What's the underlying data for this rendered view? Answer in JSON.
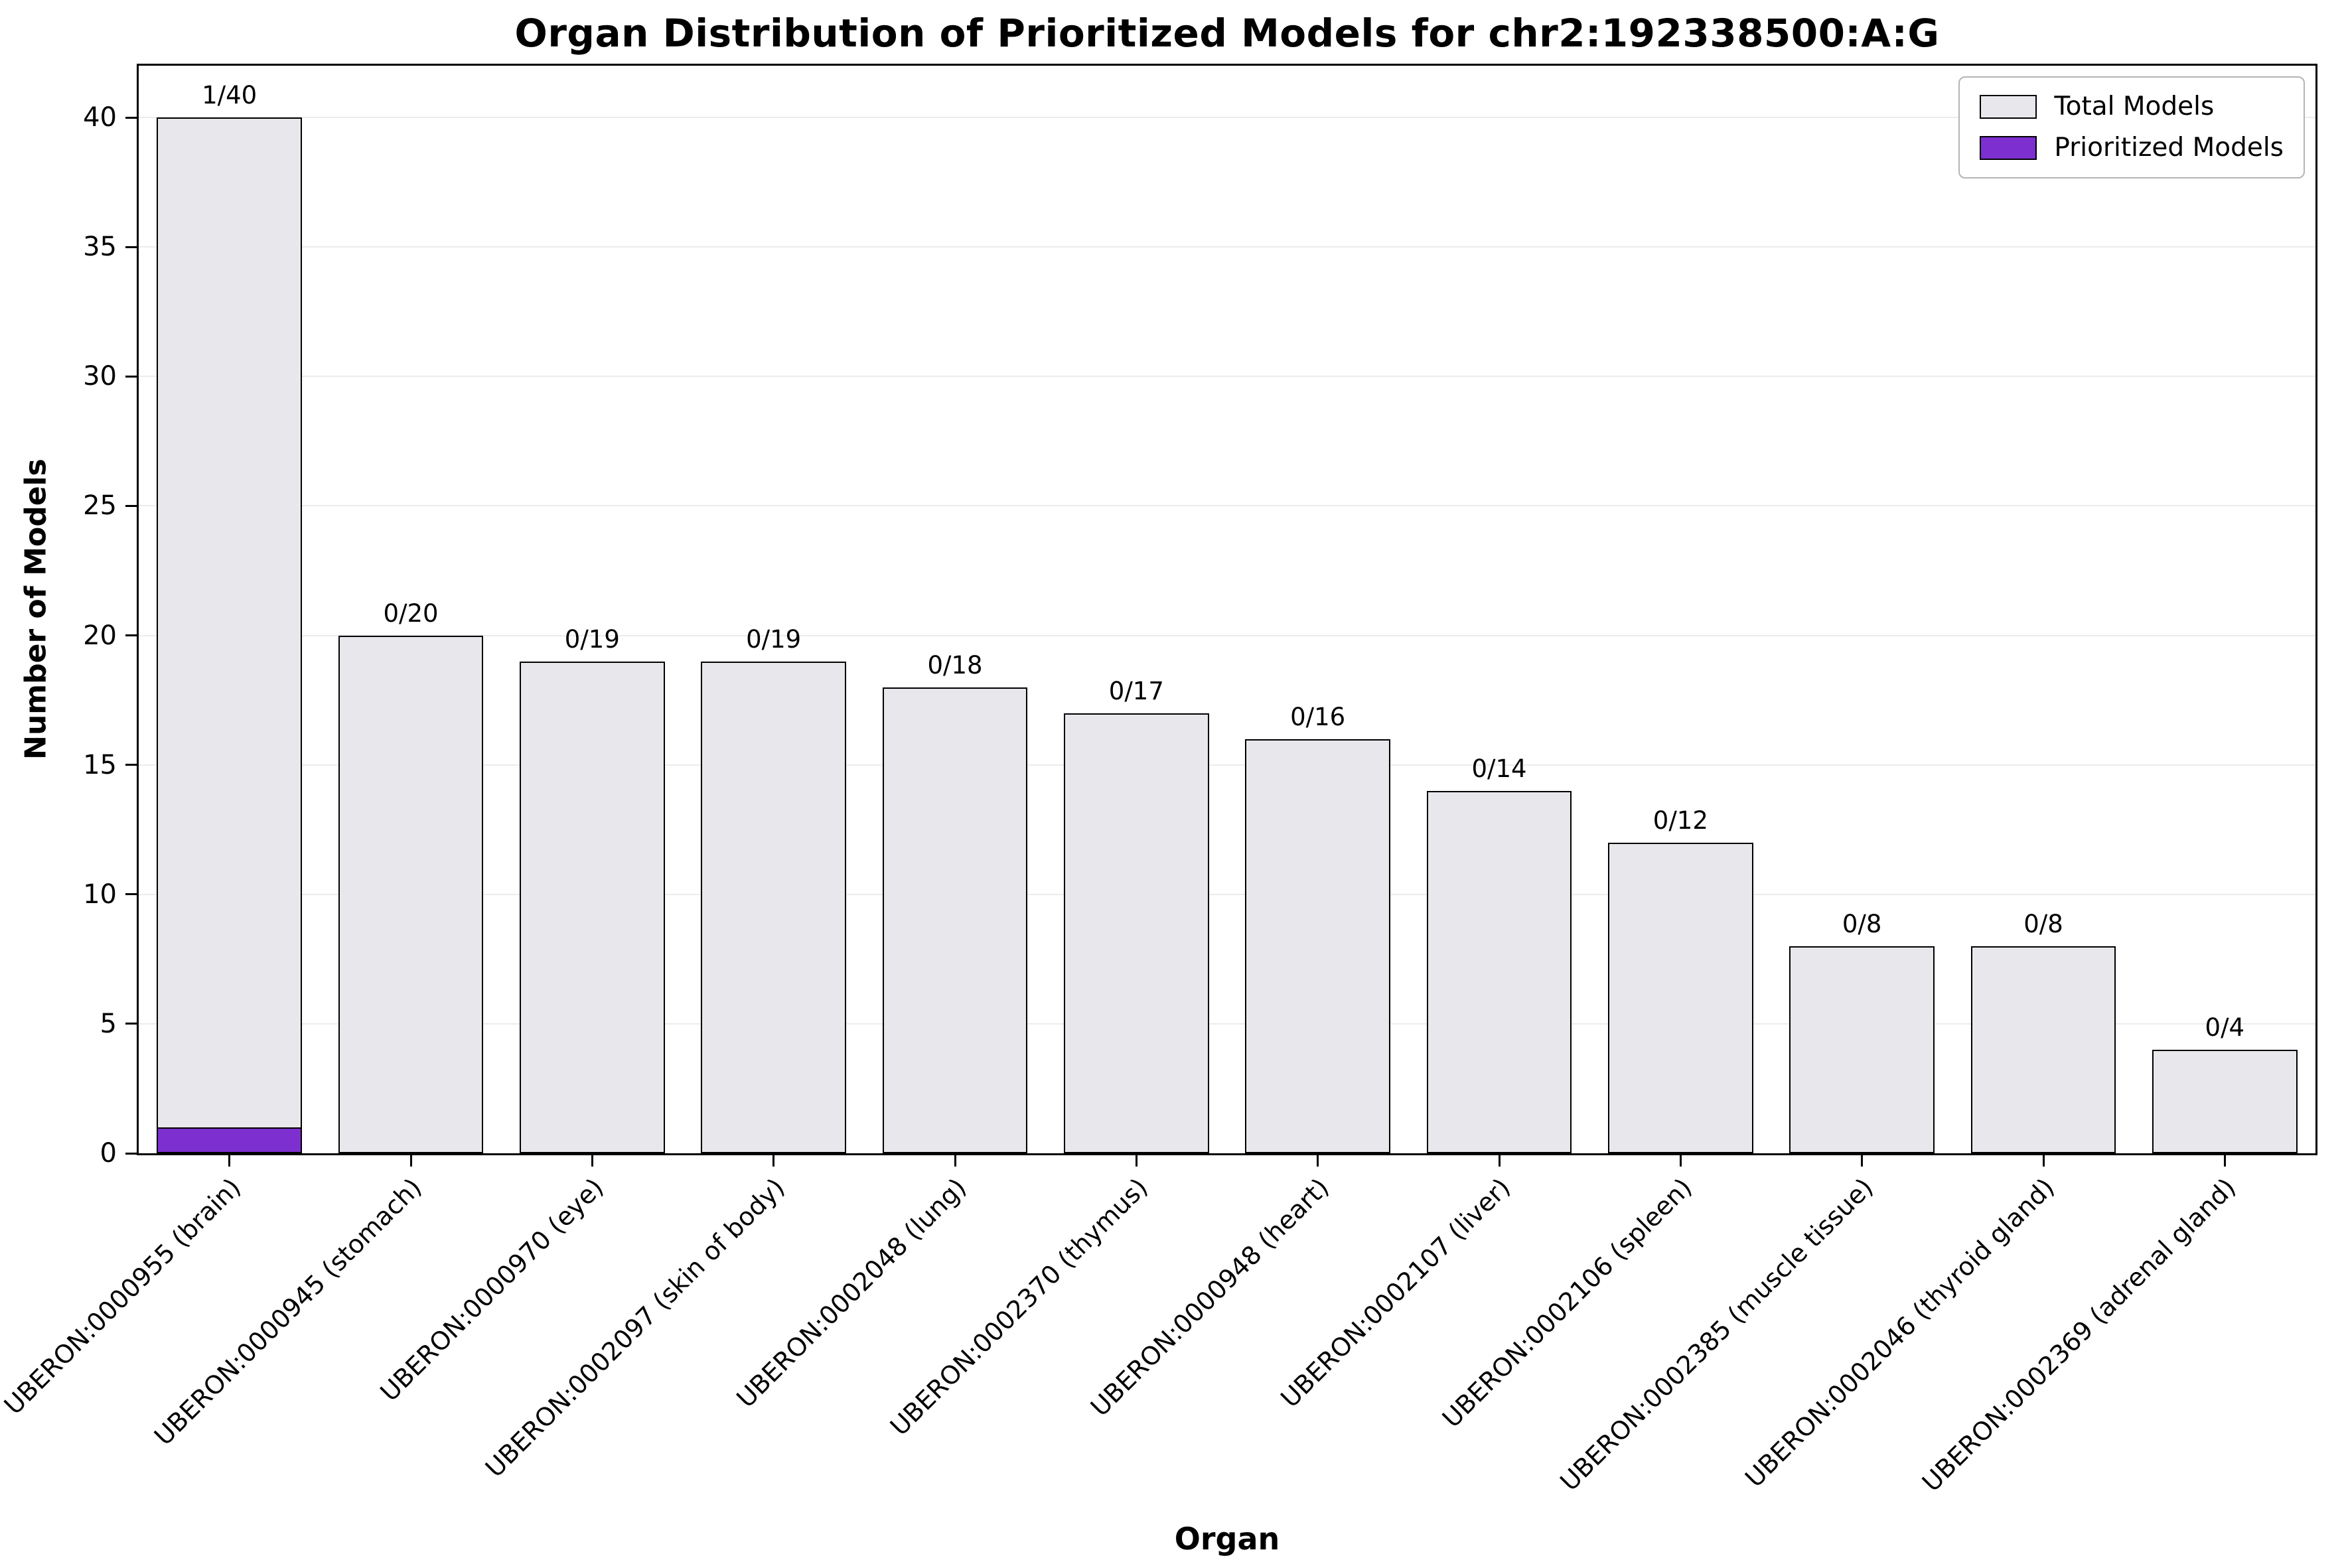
{
  "title": "Organ Distribution of Prioritized Models for chr2:192338500:A:G",
  "chart_data": {
    "type": "bar",
    "title": "Organ Distribution of Prioritized Models for chr2:192338500:A:G",
    "xlabel": "Organ",
    "ylabel": "Number of Models",
    "ylim": [
      0,
      42
    ],
    "yticks": [
      0,
      5,
      10,
      15,
      20,
      25,
      30,
      35,
      40
    ],
    "grid": true,
    "legend_position": "upper right",
    "categories": [
      "UBERON:0000955 (brain)",
      "UBERON:0000945 (stomach)",
      "UBERON:0000970 (eye)",
      "UBERON:0002097 (skin of body)",
      "UBERON:0002048 (lung)",
      "UBERON:0002370 (thymus)",
      "UBERON:0000948 (heart)",
      "UBERON:0002107 (liver)",
      "UBERON:0002106 (spleen)",
      "UBERON:0002385 (muscle tissue)",
      "UBERON:0002046 (thyroid gland)",
      "UBERON:0002369 (adrenal gland)"
    ],
    "series": [
      {
        "name": "Total Models",
        "color": "#e8e8ec",
        "values": [
          40,
          20,
          19,
          19,
          18,
          17,
          16,
          14,
          12,
          8,
          8,
          4
        ]
      },
      {
        "name": "Prioritized Models",
        "color": "#7d2fd0",
        "values": [
          1,
          0,
          0,
          0,
          0,
          0,
          0,
          0,
          0,
          0,
          0,
          0
        ]
      }
    ],
    "bar_labels": [
      "1/40",
      "0/20",
      "0/19",
      "0/19",
      "0/18",
      "0/17",
      "0/16",
      "0/14",
      "0/12",
      "0/8",
      "0/8",
      "0/4"
    ]
  },
  "colors": {
    "total_fill": "#e8e8ec",
    "prioritized_fill": "#7d2fd0",
    "bar_edge": "#000000",
    "grid": "#ececec"
  }
}
